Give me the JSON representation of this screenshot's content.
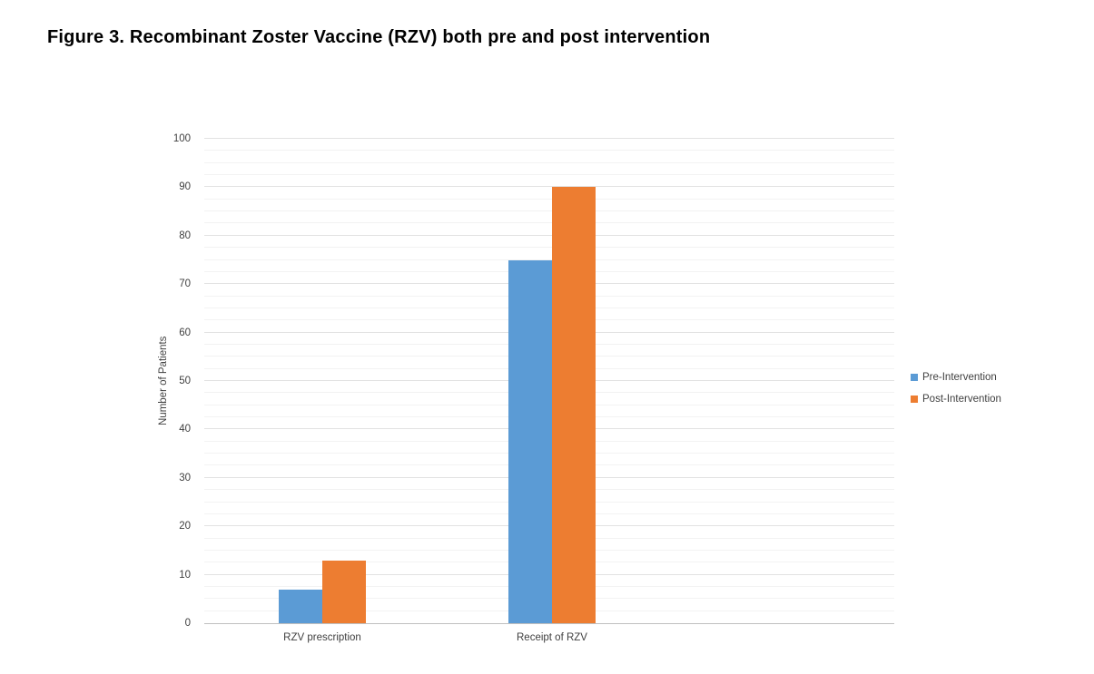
{
  "figure": {
    "title": "Figure 3. Recombinant Zoster Vaccine (RZV) both pre and post intervention"
  },
  "chart_data": {
    "type": "bar",
    "title": "Figure 3. Recombinant Zoster Vaccine (RZV) both pre and post intervention",
    "categories": [
      "RZV prescription",
      "Receipt of RZV"
    ],
    "series": [
      {
        "name": "Pre-Intervention",
        "color": "#5B9BD5",
        "values": [
          7,
          75
        ]
      },
      {
        "name": "Post-Intervention",
        "color": "#ED7D31",
        "values": [
          13,
          90
        ]
      }
    ],
    "xlabel": "",
    "ylabel": "Number of Patients",
    "ylim": [
      0,
      100
    ],
    "y_major_step": 10,
    "y_minor_step": 2.5,
    "grid": "on",
    "legend_position": "right"
  }
}
